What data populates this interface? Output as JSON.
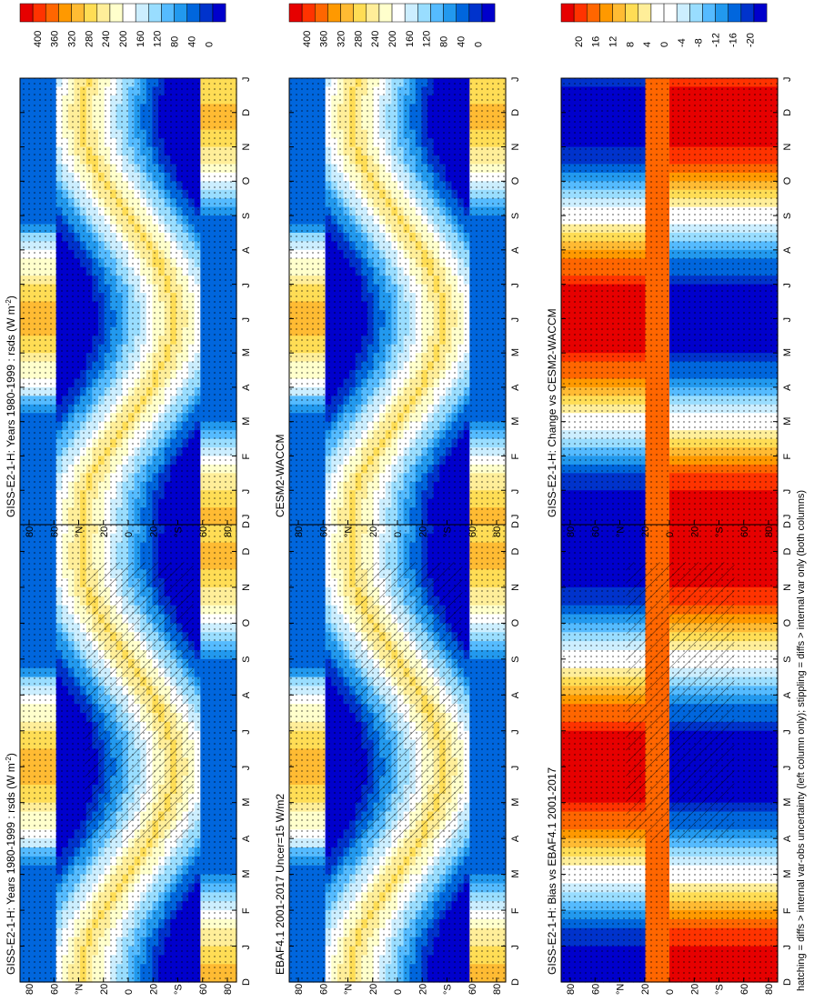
{
  "footnote": "hatching = diffs > internal var-obs uncertainty (left column only); stippling = diffs > internal var only (both columns)",
  "month_labels": [
    "D",
    "J",
    "F",
    "M",
    "A",
    "M",
    "J",
    "J",
    "A",
    "S",
    "O",
    "N",
    "D",
    "J"
  ],
  "lat_labels": [
    "80",
    "60",
    "°N",
    "20",
    "0",
    "20",
    "°S",
    "60",
    "80"
  ],
  "colorbars": {
    "abs": {
      "labels": [
        "400",
        "360",
        "320",
        "280",
        "240",
        "200",
        "160",
        "120",
        "80",
        "40",
        "0"
      ],
      "colors": [
        "#e60000",
        "#ff3300",
        "#ff6600",
        "#ff9900",
        "#ffbb33",
        "#ffdd55",
        "#ffee99",
        "#ffffcc",
        "#ffffff",
        "#cceeff",
        "#99ddff",
        "#55bbff",
        "#2299ee",
        "#0066dd",
        "#0033cc",
        "#0000cc"
      ]
    },
    "diff": {
      "labels": [
        "20",
        "16",
        "12",
        "8",
        "4",
        "0",
        "-4",
        "-8",
        "-12",
        "-16",
        "-20"
      ],
      "colors": [
        "#e60000",
        "#ff3300",
        "#ff6600",
        "#ff9900",
        "#ffbb33",
        "#ffdd55",
        "#ffee99",
        "#ffffff",
        "#ffffff",
        "#cceeff",
        "#99ddff",
        "#55bbff",
        "#2299ee",
        "#0066dd",
        "#0033cc",
        "#0000cc"
      ]
    }
  },
  "panels": [
    {
      "id": "p1",
      "title": "GISS-E2-1-H: Years 1980-1999 : rsds (W m",
      "title_sup": "-2",
      "title_end": ")",
      "bar": "abs"
    },
    {
      "id": "p2",
      "title": "EBAF4.1 2001-2017 Uncer=15 W/m2",
      "title_sup": "",
      "title_end": "",
      "bar": "abs"
    },
    {
      "id": "p3",
      "title": "GISS-E2-1-H: Bias vs EBAF4.1 2001-2017",
      "title_sup": "",
      "title_end": "",
      "bar": "diff"
    },
    {
      "id": "p4",
      "title": "GISS-E2-1-H: Years 1980-1999 : rsds (W m",
      "title_sup": "-2",
      "title_end": ")",
      "bar": "abs"
    },
    {
      "id": "p5",
      "title": "CESM2-WACCM",
      "title_sup": "",
      "title_end": "",
      "bar": "abs"
    },
    {
      "id": "p6",
      "title": "GISS-E2-1-H: Change vs CESM2-WACCM",
      "title_sup": "",
      "title_end": "",
      "bar": "diff"
    }
  ],
  "chart_data": [
    {
      "type": "heatmap",
      "title": "GISS-E2-1-H: Years 1980-1999 : rsds (W m-2)",
      "x": "month (D..J)",
      "y": "latitude 90N..90S",
      "zlim": [
        0,
        400
      ]
    },
    {
      "type": "heatmap",
      "title": "EBAF4.1 2001-2017 Uncer=15 W/m2",
      "x": "month (D..J)",
      "y": "latitude 90N..90S",
      "zlim": [
        0,
        400
      ]
    },
    {
      "type": "heatmap",
      "title": "GISS-E2-1-H: Bias vs EBAF4.1 2001-2017",
      "x": "month (D..J)",
      "y": "latitude 90N..90S",
      "zlim": [
        -20,
        20
      ]
    },
    {
      "type": "heatmap",
      "title": "GISS-E2-1-H: Years 1980-1999 : rsds (W m-2)",
      "x": "month (D..J)",
      "y": "latitude 90N..90S",
      "zlim": [
        0,
        400
      ]
    },
    {
      "type": "heatmap",
      "title": "CESM2-WACCM",
      "x": "month (D..J)",
      "y": "latitude 90N..90S",
      "zlim": [
        0,
        400
      ]
    },
    {
      "type": "heatmap",
      "title": "GISS-E2-1-H: Change vs CESM2-WACCM",
      "x": "month (D..J)",
      "y": "latitude 90N..90S",
      "zlim": [
        -20,
        20
      ]
    }
  ]
}
